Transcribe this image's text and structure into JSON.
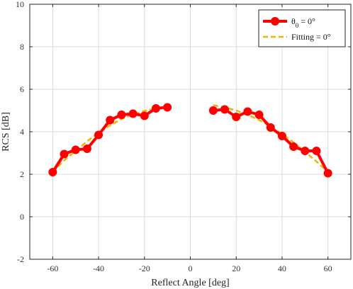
{
  "chart_data": {
    "type": "line",
    "title": "",
    "xlabel": "Reflect Angle [deg]",
    "ylabel": "RCS [dB]",
    "xlim": [
      -70,
      70
    ],
    "ylim": [
      -2,
      10
    ],
    "xticks": [
      -60,
      -40,
      -20,
      0,
      20,
      40,
      60
    ],
    "yticks": [
      -2,
      0,
      2,
      4,
      6,
      8,
      10
    ],
    "grid": true,
    "legend_position": "top-right",
    "series": [
      {
        "name_main": "θ",
        "name_sub": "0",
        "name_rest": " = 0°",
        "color": "#ff0000",
        "style": "solid-line-with-circle-markers",
        "segments": [
          {
            "x": [
              -60,
              -55,
              -50,
              -45,
              -40,
              -35,
              -30,
              -25,
              -20,
              -15,
              -10
            ],
            "y": [
              2.1,
              2.95,
              3.15,
              3.2,
              3.85,
              4.55,
              4.8,
              4.85,
              4.75,
              5.1,
              5.15
            ]
          },
          {
            "x": [
              10,
              15,
              20,
              25,
              30,
              35,
              40,
              45,
              50,
              55,
              60
            ],
            "y": [
              5.0,
              5.05,
              4.7,
              4.95,
              4.8,
              4.2,
              3.8,
              3.3,
              3.1,
              3.1,
              2.05
            ]
          }
        ]
      },
      {
        "name": "Fitting = 0°",
        "color": "#f0b400",
        "style": "dashed-line",
        "segments": [
          {
            "x": [
              -60,
              -55,
              -50,
              -45,
              -40,
              -35,
              -30,
              -25,
              -20,
              -15,
              -10
            ],
            "y": [
              2.1,
              2.65,
              3.1,
              3.55,
              3.95,
              4.3,
              4.6,
              4.82,
              4.98,
              5.1,
              5.2
            ]
          },
          {
            "x": [
              10,
              15,
              20,
              25,
              30,
              35,
              40,
              45,
              50,
              55,
              60
            ],
            "y": [
              5.25,
              5.15,
              5.0,
              4.8,
              4.55,
              4.25,
              3.9,
              3.5,
              3.05,
              2.6,
              2.1
            ]
          }
        ]
      }
    ]
  }
}
